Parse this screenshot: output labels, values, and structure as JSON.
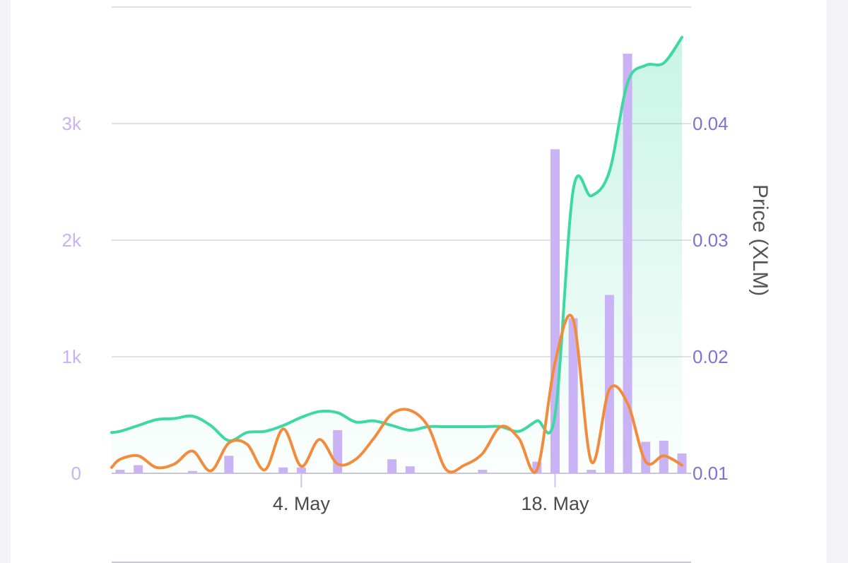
{
  "chart_data": {
    "type": "bar+line",
    "title": "",
    "colors": {
      "volume": "#c9b3f5",
      "price": "#3dd9a4",
      "secondary": "#f28c3c",
      "left_tick": "#c9b3f5",
      "right_tick": "#7b73d6",
      "grid": "#e0e0e6"
    },
    "grid": true,
    "y_left": {
      "label": "",
      "range": [
        0,
        4000
      ],
      "ticks": [
        {
          "value": 0,
          "label": "0"
        },
        {
          "value": 1000,
          "label": "1k"
        },
        {
          "value": 2000,
          "label": "2k"
        },
        {
          "value": 3000,
          "label": "3k"
        }
      ],
      "grid_values": [
        0,
        1000,
        2000,
        3000,
        4000
      ]
    },
    "y_right": {
      "label": "Price (XLM)",
      "range": [
        0.01,
        0.05
      ],
      "ticks": [
        {
          "value": 0.01,
          "label": "0.01"
        },
        {
          "value": 0.02,
          "label": "0.02"
        },
        {
          "value": 0.03,
          "label": "0.03"
        },
        {
          "value": 0.04,
          "label": "0.04"
        }
      ]
    },
    "x_axis": {
      "start": "2024-04-24",
      "end": "2024-05-25",
      "ticks": [
        {
          "date": "2024-05-04",
          "label": "4. May"
        },
        {
          "date": "2024-05-18",
          "label": "18. May"
        }
      ]
    },
    "volume_bars": [
      {
        "date": "2024-04-24",
        "value": 30
      },
      {
        "date": "2024-04-25",
        "value": 70
      },
      {
        "date": "2024-04-28",
        "value": 20
      },
      {
        "date": "2024-04-30",
        "value": 150
      },
      {
        "date": "2024-05-03",
        "value": 50
      },
      {
        "date": "2024-05-04",
        "value": 50
      },
      {
        "date": "2024-05-06",
        "value": 370
      },
      {
        "date": "2024-05-09",
        "value": 120
      },
      {
        "date": "2024-05-10",
        "value": 60
      },
      {
        "date": "2024-05-14",
        "value": 30
      },
      {
        "date": "2024-05-17",
        "value": 100
      },
      {
        "date": "2024-05-18",
        "value": 2780
      },
      {
        "date": "2024-05-19",
        "value": 1330
      },
      {
        "date": "2024-05-20",
        "value": 30
      },
      {
        "date": "2024-05-21",
        "value": 1530
      },
      {
        "date": "2024-05-22",
        "value": 3600
      },
      {
        "date": "2024-05-23",
        "value": 270
      },
      {
        "date": "2024-05-24",
        "value": 280
      },
      {
        "date": "2024-05-25",
        "value": 170
      }
    ],
    "price_series": [
      {
        "date": "2024-04-23",
        "value": 0.0135
      },
      {
        "date": "2024-04-24",
        "value": 0.0136
      },
      {
        "date": "2024-04-25",
        "value": 0.0141
      },
      {
        "date": "2024-04-26",
        "value": 0.0146
      },
      {
        "date": "2024-04-27",
        "value": 0.0147
      },
      {
        "date": "2024-04-28",
        "value": 0.0149
      },
      {
        "date": "2024-04-29",
        "value": 0.0141
      },
      {
        "date": "2024-04-30",
        "value": 0.0128
      },
      {
        "date": "2024-05-01",
        "value": 0.0135
      },
      {
        "date": "2024-05-02",
        "value": 0.0136
      },
      {
        "date": "2024-05-03",
        "value": 0.0141
      },
      {
        "date": "2024-05-04",
        "value": 0.0148
      },
      {
        "date": "2024-05-05",
        "value": 0.0153
      },
      {
        "date": "2024-05-06",
        "value": 0.0152
      },
      {
        "date": "2024-05-07",
        "value": 0.0144
      },
      {
        "date": "2024-05-08",
        "value": 0.0145
      },
      {
        "date": "2024-05-09",
        "value": 0.0141
      },
      {
        "date": "2024-05-10",
        "value": 0.0137
      },
      {
        "date": "2024-05-11",
        "value": 0.014
      },
      {
        "date": "2024-05-12",
        "value": 0.014
      },
      {
        "date": "2024-05-13",
        "value": 0.014
      },
      {
        "date": "2024-05-14",
        "value": 0.014
      },
      {
        "date": "2024-05-15",
        "value": 0.014
      },
      {
        "date": "2024-05-16",
        "value": 0.0136
      },
      {
        "date": "2024-05-17",
        "value": 0.0145
      },
      {
        "date": "2024-05-18",
        "value": 0.015
      },
      {
        "date": "2024-05-19",
        "value": 0.0343
      },
      {
        "date": "2024-05-20",
        "value": 0.0338
      },
      {
        "date": "2024-05-21",
        "value": 0.0359
      },
      {
        "date": "2024-05-22",
        "value": 0.0435
      },
      {
        "date": "2024-05-23",
        "value": 0.045
      },
      {
        "date": "2024-05-24",
        "value": 0.0452
      },
      {
        "date": "2024-05-25",
        "value": 0.0474
      }
    ],
    "secondary_series": [
      {
        "date": "2024-04-23",
        "value": 0.0105
      },
      {
        "date": "2024-04-24",
        "value": 0.0112
      },
      {
        "date": "2024-04-25",
        "value": 0.0115
      },
      {
        "date": "2024-04-26",
        "value": 0.0105
      },
      {
        "date": "2024-04-27",
        "value": 0.0108
      },
      {
        "date": "2024-04-28",
        "value": 0.0119
      },
      {
        "date": "2024-04-29",
        "value": 0.0102
      },
      {
        "date": "2024-04-30",
        "value": 0.0126
      },
      {
        "date": "2024-05-01",
        "value": 0.0125
      },
      {
        "date": "2024-05-02",
        "value": 0.0103
      },
      {
        "date": "2024-05-03",
        "value": 0.0138
      },
      {
        "date": "2024-05-04",
        "value": 0.0106
      },
      {
        "date": "2024-05-05",
        "value": 0.0129
      },
      {
        "date": "2024-05-06",
        "value": 0.0108
      },
      {
        "date": "2024-05-07",
        "value": 0.0112
      },
      {
        "date": "2024-05-08",
        "value": 0.013
      },
      {
        "date": "2024-05-09",
        "value": 0.0151
      },
      {
        "date": "2024-05-10",
        "value": 0.0154
      },
      {
        "date": "2024-05-11",
        "value": 0.014
      },
      {
        "date": "2024-05-12",
        "value": 0.0103
      },
      {
        "date": "2024-05-13",
        "value": 0.0107
      },
      {
        "date": "2024-05-14",
        "value": 0.0117
      },
      {
        "date": "2024-05-15",
        "value": 0.014
      },
      {
        "date": "2024-05-16",
        "value": 0.013
      },
      {
        "date": "2024-05-17",
        "value": 0.0103
      },
      {
        "date": "2024-05-18",
        "value": 0.0195
      },
      {
        "date": "2024-05-19",
        "value": 0.0232
      },
      {
        "date": "2024-05-20",
        "value": 0.011
      },
      {
        "date": "2024-05-21",
        "value": 0.0172
      },
      {
        "date": "2024-05-22",
        "value": 0.016
      },
      {
        "date": "2024-05-23",
        "value": 0.011
      },
      {
        "date": "2024-05-24",
        "value": 0.0115
      },
      {
        "date": "2024-05-25",
        "value": 0.0107
      }
    ]
  }
}
